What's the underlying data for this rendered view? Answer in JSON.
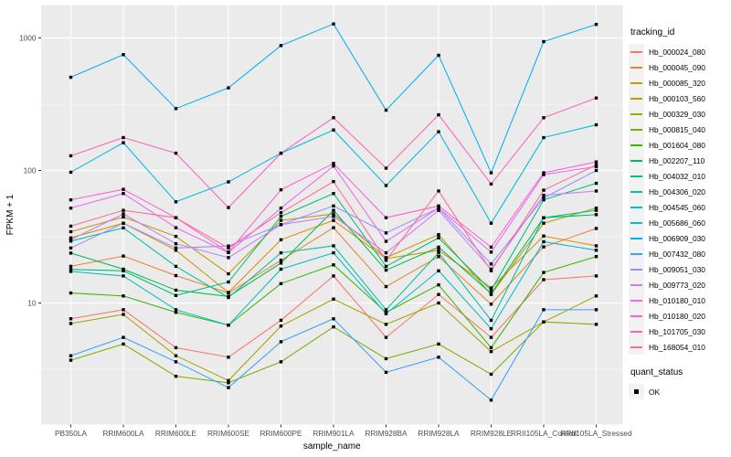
{
  "panel": {
    "bg": "#EBEBEB",
    "grid_major": "#FFFFFF",
    "grid_minor": "#FFFFFF",
    "tick_color": "#333333",
    "tick_label_color": "#4D4D4D",
    "axis_title_color": "#000000",
    "legend_key_bg": "#F2F2F2"
  },
  "legend": {
    "tracking_title": "tracking_id",
    "quant_title": "quant_status",
    "quant_items": [
      {
        "label": "OK",
        "color": "#000000"
      }
    ]
  },
  "chart_data": {
    "type": "line",
    "title": "",
    "xlabel": "sample_name",
    "ylabel": "FPKM + 1",
    "yscale": "log10",
    "yticks": [
      10,
      100,
      1000
    ],
    "ytick_labels": [
      "10",
      "100",
      "1000"
    ],
    "ylim": [
      1.2,
      1770
    ],
    "grid": "on",
    "legend_position": "right",
    "marker": {
      "shape": "square",
      "color": "#000000",
      "size": 3.4
    },
    "categories": [
      "PB350LA",
      "RRIM600LA",
      "RRIM600LE",
      "RRIM600SE",
      "RRIM600PE",
      "RRIM901LA",
      "RRIM928BA",
      "RRIM928LA",
      "RRIM928LE",
      "RRII105LA_Control",
      "RRII105LA_Stressed"
    ],
    "series": [
      {
        "id": "Hb_000024_080",
        "color": "#F8766D",
        "values": [
          7.6,
          8.9,
          4.6,
          3.9,
          7.4,
          16,
          5.5,
          11.6,
          5.5,
          15,
          16
        ]
      },
      {
        "id": "Hb_000045_090",
        "color": "#EA8331",
        "values": [
          18.9,
          22.6,
          16.1,
          11.9,
          21,
          37,
          13.3,
          22.4,
          9.8,
          26.5,
          36.5
        ]
      },
      {
        "id": "Hb_000085_320",
        "color": "#D89000",
        "values": [
          31,
          40,
          25,
          12,
          30,
          42,
          21.6,
          25,
          13,
          32,
          27
        ]
      },
      {
        "id": "Hb_000103_560",
        "color": "#C09B00",
        "values": [
          34.5,
          44.5,
          31.8,
          16.6,
          42,
          47,
          22,
          32.8,
          11.6,
          40,
          52
        ]
      },
      {
        "id": "Hb_000329_030",
        "color": "#A3A500",
        "values": [
          7.0,
          8.2,
          4.0,
          2.6,
          6.7,
          10.7,
          6.9,
          10.0,
          4.3,
          7.2,
          11.3
        ]
      },
      {
        "id": "Hb_000815_040",
        "color": "#7CAE00",
        "values": [
          3.7,
          4.9,
          2.8,
          2.5,
          3.6,
          6.6,
          3.8,
          4.9,
          2.9,
          7.2,
          6.9
        ]
      },
      {
        "id": "Hb_001604_080",
        "color": "#39B600",
        "values": [
          11.9,
          11.3,
          8.5,
          6.8,
          14,
          19.4,
          8.5,
          13.7,
          4.6,
          17,
          22.4
        ]
      },
      {
        "id": "Hb_002207_110",
        "color": "#00BB4E",
        "values": [
          23.8,
          18,
          12.5,
          11.2,
          20,
          50,
          17.7,
          26.4,
          11.8,
          44,
          46.4
        ]
      },
      {
        "id": "Hb_004032_010",
        "color": "#00BF7D",
        "values": [
          17.9,
          17.5,
          11.4,
          14.4,
          45,
          67,
          18.9,
          31,
          12.5,
          60,
          80
        ]
      },
      {
        "id": "Hb_004306_020",
        "color": "#00C1A3",
        "values": [
          29.3,
          36.9,
          18.9,
          11,
          23.9,
          27,
          8.9,
          23.9,
          7.4,
          44,
          50
        ]
      },
      {
        "id": "Hb_004545_060",
        "color": "#00BFC4",
        "values": [
          17.3,
          16,
          8.9,
          6.8,
          18,
          23.9,
          8.3,
          17.5,
          6.4,
          29,
          25
        ]
      },
      {
        "id": "Hb_005686_060",
        "color": "#00BAE0",
        "values": [
          97,
          162,
          58,
          82,
          135,
          202,
          77,
          196,
          40,
          177,
          221
        ]
      },
      {
        "id": "Hb_006909_030",
        "color": "#00B0F6",
        "values": [
          505,
          748,
          293,
          420,
          876,
          1275,
          285,
          740,
          96,
          938,
          1265
        ]
      },
      {
        "id": "Hb_007432_080",
        "color": "#35A2FF",
        "values": [
          4.0,
          5.5,
          3.6,
          2.3,
          5.1,
          7.6,
          3.0,
          3.9,
          1.85,
          8.9,
          8.9
        ]
      },
      {
        "id": "Hb_009051_030",
        "color": "#9590FF",
        "values": [
          26,
          40,
          26,
          26.9,
          39,
          54,
          33.8,
          52,
          19.7,
          62,
          100
        ]
      },
      {
        "id": "Hb_009773_020",
        "color": "#C77CFF",
        "values": [
          30,
          47,
          28,
          22,
          39,
          45,
          23.9,
          50,
          18,
          65,
          70
        ]
      },
      {
        "id": "Hb_010180_010",
        "color": "#E76BF3",
        "values": [
          52,
          67,
          37,
          24,
          52,
          108,
          29.2,
          52,
          24.2,
          93,
          107
        ]
      },
      {
        "id": "Hb_010180_020",
        "color": "#FD61D3",
        "values": [
          60,
          72,
          44,
          24.2,
          71.5,
          113,
          44,
          54,
          26.4,
          96,
          116
        ]
      },
      {
        "id": "Hb_101705_030",
        "color": "#FF62BC",
        "values": [
          129,
          177,
          135,
          52.5,
          135,
          250,
          104,
          263,
          79,
          250,
          352
        ]
      },
      {
        "id": "Hb_168054_010",
        "color": "#FF6A98",
        "values": [
          38,
          50,
          44,
          26,
          48,
          82.5,
          21,
          70,
          17.5,
          71,
          110
        ]
      }
    ]
  }
}
